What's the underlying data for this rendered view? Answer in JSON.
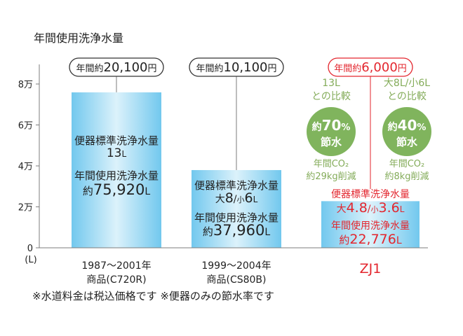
{
  "chart_data": {
    "type": "bar",
    "title": "年間使用洗浄水量",
    "ylim": [
      0,
      80000
    ],
    "y_ticks": [
      {
        "value": 0,
        "label": "0"
      },
      {
        "value": 20000,
        "label": "2万"
      },
      {
        "value": 40000,
        "label": "4万"
      },
      {
        "value": 60000,
        "label": "6万"
      },
      {
        "value": 80000,
        "label": "8万"
      }
    ],
    "y_unit": "(L)",
    "grid": false,
    "categories": [
      "1987～2001年\n商品(C720R)",
      "1999～2004年\n商品(CS80B)",
      "ZJ1"
    ],
    "values": [
      75920,
      37960,
      22776
    ],
    "bars": [
      {
        "category_lines": [
          "1987～2001年",
          "商品(C720R)"
        ],
        "annual_usage": 75920,
        "price_prefix": "年間約",
        "price_value": "20,100",
        "price_unit": "円",
        "label_lines": [
          [
            {
              "t": "便器標準洗浄水量",
              "s": 15
            }
          ],
          [
            {
              "t": "13",
              "s": 17
            },
            {
              "t": "L",
              "s": 12
            }
          ],
          [
            {
              "t": "年間使用洗浄水量",
              "s": 15
            }
          ],
          [
            {
              "t": "約",
              "s": 15
            },
            {
              "t": "75,920",
              "s": 21
            },
            {
              "t": "L",
              "s": 14
            }
          ]
        ]
      },
      {
        "category_lines": [
          "1999～2004年",
          "商品(CS80B)"
        ],
        "annual_usage": 37960,
        "price_prefix": "年間約",
        "price_value": "10,100",
        "price_unit": "円",
        "label_lines": [
          [
            {
              "t": "便器標準洗浄水量",
              "s": 15
            }
          ],
          [
            {
              "t": "大",
              "s": 14
            },
            {
              "t": "8",
              "s": 19
            },
            {
              "t": "/",
              "s": 14
            },
            {
              "t": "小",
              "s": 11
            },
            {
              "t": "6",
              "s": 19
            },
            {
              "t": "L",
              "s": 12
            }
          ],
          [
            {
              "t": "年間使用洗浄水量",
              "s": 15
            }
          ],
          [
            {
              "t": "約",
              "s": 15
            },
            {
              "t": "37,960",
              "s": 21
            },
            {
              "t": "L",
              "s": 14
            }
          ]
        ]
      },
      {
        "category_lines": [
          "ZJ1"
        ],
        "annual_usage": 22776,
        "price_prefix": "年間約",
        "price_value": "6,000",
        "price_unit": "円",
        "label_lines": [
          [
            {
              "t": "便器標準洗浄水量",
              "s": 14
            }
          ],
          [
            {
              "t": "大",
              "s": 14
            },
            {
              "t": "4.8",
              "s": 19
            },
            {
              "t": "/",
              "s": 14
            },
            {
              "t": "小",
              "s": 11
            },
            {
              "t": "3.6",
              "s": 19
            },
            {
              "t": "L",
              "s": 12
            }
          ],
          [
            {
              "t": "年間使用洗浄水量",
              "s": 14
            }
          ],
          [
            {
              "t": "約",
              "s": 15
            },
            {
              "t": "22,776",
              "s": 19
            },
            {
              "t": "L",
              "s": 14
            }
          ]
        ]
      }
    ],
    "comparisons": [
      {
        "compare_lines": [
          "13L",
          "との比較"
        ],
        "circle_top": "約",
        "circle_pct": "70",
        "circle_sign": "%",
        "circle_bottom": "節水",
        "co2_lines": [
          "年間CO₂",
          "約29kg削減"
        ]
      },
      {
        "compare_lines": [
          "大8L/小6L",
          "との比較"
        ],
        "circle_top": "約",
        "circle_pct": "40",
        "circle_sign": "%",
        "circle_bottom": "節水",
        "co2_lines": [
          "年間CO₂",
          "約8kg削減"
        ]
      }
    ]
  },
  "note": "※水道料金は税込価格です ※便器のみの節水率です",
  "colors": {
    "accent_red": "#e3262e",
    "green": "#84ac5a",
    "circle_green": "#80b45d",
    "bar_blue_edge": "#6fc6ec",
    "bar_blue_light": "#d9f1fb",
    "axis": "#7d7d7d",
    "text": "#222222"
  }
}
